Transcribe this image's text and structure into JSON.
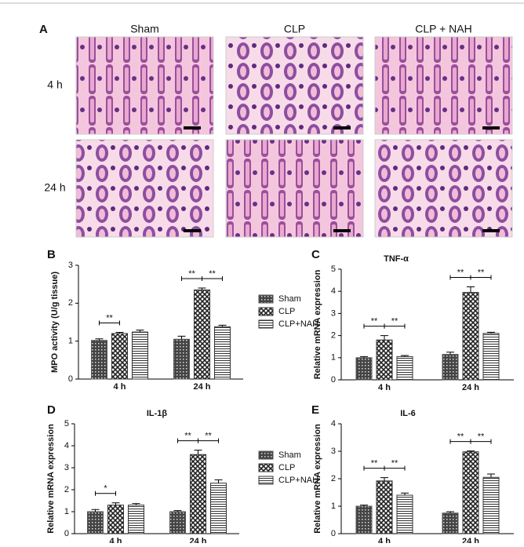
{
  "figure": {
    "panel": "A",
    "columns": [
      "Sham",
      "CLP",
      "CLP + NAH"
    ],
    "rows": [
      "4 h",
      "24 h"
    ]
  },
  "chart_data": [
    {
      "type": "bar",
      "panel": "B",
      "y_label": "MPO activity (U/g tissue)",
      "categories": [
        "4 h",
        "24 h"
      ],
      "ylim": [
        0,
        3
      ],
      "yticks": [
        0,
        1,
        2,
        3
      ],
      "legend": "right",
      "series": [
        {
          "name": "Sham",
          "color": "#555555",
          "pattern": "dots",
          "values": [
            1.02,
            1.05
          ],
          "errors": [
            0.04,
            0.08
          ]
        },
        {
          "name": "CLP",
          "color": "#333333",
          "pattern": "cross",
          "values": [
            1.2,
            2.35
          ],
          "errors": [
            0.03,
            0.05
          ]
        },
        {
          "name": "CLP+NAH",
          "color": "#333333",
          "pattern": "hlines",
          "values": [
            1.24,
            1.38
          ],
          "errors": [
            0.05,
            0.04
          ]
        }
      ],
      "annotations": [
        {
          "text": "**",
          "category": 0,
          "from": 0,
          "to": 1
        },
        {
          "text": "**",
          "category": 1,
          "from": 0,
          "to": 1
        },
        {
          "text": "**",
          "category": 1,
          "from": 1,
          "to": 2
        }
      ]
    },
    {
      "type": "bar",
      "panel": "C",
      "title": "TNF-α",
      "y_label": "Relative mRNA expression",
      "categories": [
        "4 h",
        "24 h"
      ],
      "ylim": [
        0,
        5
      ],
      "yticks": [
        0,
        1,
        2,
        3,
        4,
        5
      ],
      "series": [
        {
          "color": "#555555",
          "pattern": "dots",
          "values": [
            1.0,
            1.15
          ],
          "errors": [
            0.05,
            0.1
          ]
        },
        {
          "color": "#333333",
          "pattern": "cross",
          "values": [
            1.8,
            3.95
          ],
          "errors": [
            0.2,
            0.25
          ]
        },
        {
          "color": "#333333",
          "pattern": "hlines",
          "values": [
            1.05,
            2.1
          ],
          "errors": [
            0.05,
            0.05
          ]
        }
      ],
      "annotations": [
        {
          "text": "**",
          "category": 0,
          "from": 0,
          "to": 1
        },
        {
          "text": "**",
          "category": 0,
          "from": 1,
          "to": 2
        },
        {
          "text": "**",
          "category": 1,
          "from": 0,
          "to": 1
        },
        {
          "text": "**",
          "category": 1,
          "from": 1,
          "to": 2
        }
      ]
    },
    {
      "type": "bar",
      "panel": "D",
      "title": "IL-1β",
      "y_label": "Relative mRNA expression",
      "categories": [
        "4 h",
        "24 h"
      ],
      "ylim": [
        0,
        5
      ],
      "yticks": [
        0,
        1,
        2,
        3,
        4,
        5
      ],
      "legend": "right",
      "series": [
        {
          "name": "Sham",
          "color": "#555555",
          "pattern": "dots",
          "values": [
            1.0,
            1.0
          ],
          "errors": [
            0.1,
            0.05
          ]
        },
        {
          "name": "CLP",
          "color": "#333333",
          "pattern": "cross",
          "values": [
            1.3,
            3.6
          ],
          "errors": [
            0.1,
            0.2
          ]
        },
        {
          "name": "CLP+NAH",
          "color": "#333333",
          "pattern": "hlines",
          "values": [
            1.3,
            2.3
          ],
          "errors": [
            0.07,
            0.15
          ]
        }
      ],
      "annotations": [
        {
          "text": "*",
          "category": 0,
          "from": 0,
          "to": 1
        },
        {
          "text": "**",
          "category": 1,
          "from": 0,
          "to": 1
        },
        {
          "text": "**",
          "category": 1,
          "from": 1,
          "to": 2
        }
      ]
    },
    {
      "type": "bar",
      "panel": "E",
      "title": "IL-6",
      "y_label": "Relative mRNA expression",
      "categories": [
        "4 h",
        "24 h"
      ],
      "ylim": [
        0,
        4
      ],
      "yticks": [
        0,
        1,
        2,
        3,
        4
      ],
      "series": [
        {
          "color": "#555555",
          "pattern": "dots",
          "values": [
            1.0,
            0.75
          ],
          "errors": [
            0.04,
            0.05
          ]
        },
        {
          "color": "#333333",
          "pattern": "cross",
          "values": [
            1.92,
            2.98
          ],
          "errors": [
            0.12,
            0.03
          ]
        },
        {
          "color": "#333333",
          "pattern": "hlines",
          "values": [
            1.4,
            2.05
          ],
          "errors": [
            0.08,
            0.12
          ]
        }
      ],
      "annotations": [
        {
          "text": "**",
          "category": 0,
          "from": 0,
          "to": 1
        },
        {
          "text": "**",
          "category": 0,
          "from": 1,
          "to": 2
        },
        {
          "text": "**",
          "category": 1,
          "from": 0,
          "to": 1
        },
        {
          "text": "**",
          "category": 1,
          "from": 1,
          "to": 2
        }
      ]
    }
  ]
}
